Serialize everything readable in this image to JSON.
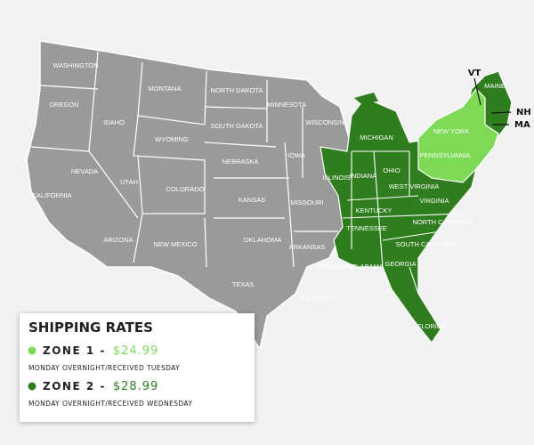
{
  "map": {
    "states": [
      "WASHINGTON",
      "OREGON",
      "IDAHO",
      "MONTANA",
      "WYOMING",
      "NORTH DAKOTA",
      "SOUTH DAKOTA",
      "MINNESOTA",
      "WISCONSIN",
      "NEVADA",
      "UTAH",
      "COLORADO",
      "NEBRASKA",
      "IOWA",
      "CALIFORNIA",
      "KANSAS",
      "MISSOURI",
      "ARIZONA",
      "NEW MEXICO",
      "OKLAHOMA",
      "ARKANSAS",
      "TEXAS",
      "LOUISIANA",
      "MISSISSIPPI",
      "ALABAMA",
      "GEORGIA",
      "FLORIDA",
      "SOUTH CAROLINA",
      "NORTH CAROLINA",
      "TENNESSEE",
      "KENTUCKY",
      "VIRGINIA",
      "WEST VIRGINIA",
      "OHIO",
      "INDIANA",
      "ILLINOIS",
      "MICHIGAN",
      "PENNSYLVANIA",
      "NEW YORK",
      "MAINE"
    ],
    "callouts": [
      "VT",
      "NH",
      "MA"
    ]
  },
  "legend": {
    "title": "SHIPPING RATES",
    "zones": [
      {
        "label": "ZONE 1 -",
        "price": "$24.99",
        "note": "MONDAY OVERNIGHT/RECEIVED TUESDAY",
        "color": "#7ed957"
      },
      {
        "label": "ZONE 2 -",
        "price": "$28.99",
        "note": "MONDAY OVERNIGHT/RECEIVED WEDNESDAY",
        "color": "#2f7d1e"
      }
    ]
  }
}
